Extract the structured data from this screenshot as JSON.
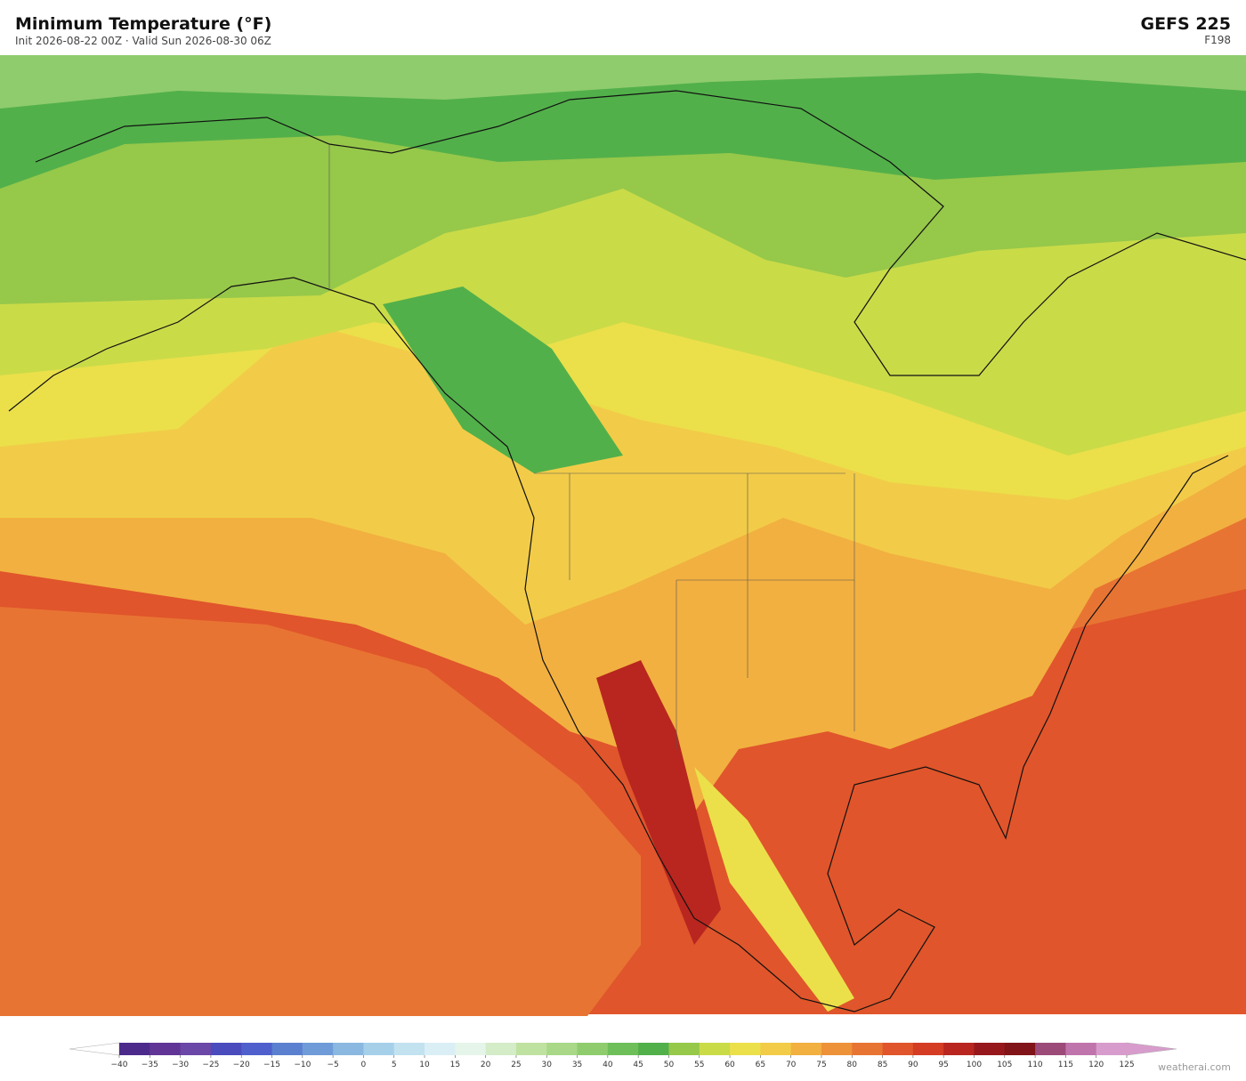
{
  "header": {
    "title": "Minimum Temperature  (°F)",
    "subtitle": "Init 2026-08-22 00Z  ·  Valid Sun 2026-08-30 06Z",
    "model": "GEFS  225",
    "forecast_hour": "F198"
  },
  "colorbar": {
    "ticks": [
      {
        "value": -40,
        "label": "−40"
      },
      {
        "value": -35,
        "label": "−35"
      },
      {
        "value": -30,
        "label": "−30"
      },
      {
        "value": -25,
        "label": "−25"
      },
      {
        "value": -20,
        "label": "−20"
      },
      {
        "value": -15,
        "label": "−15"
      },
      {
        "value": -10,
        "label": "−10"
      },
      {
        "value": -5,
        "label": "−5"
      },
      0,
      5,
      10,
      15,
      20,
      25,
      30,
      35,
      40,
      45,
      50,
      55,
      60,
      65,
      70,
      75,
      80,
      85,
      90,
      95,
      100,
      105,
      110,
      115,
      120,
      125
    ],
    "colors": [
      "#4b2a8c",
      "#613596",
      "#6b47a8",
      "#4a4cbe",
      "#4f5fcc",
      "#5b80cf",
      "#6f9cd8",
      "#8ab8e0",
      "#a6d0ea",
      "#c2e2f0",
      "#daeef5",
      "#e6f5ea",
      "#d4ecc8",
      "#c0e2a0",
      "#a8d888",
      "#8fcc6e",
      "#6ebf5a",
      "#52b04a",
      "#96c84a",
      "#cadb48",
      "#ebe04a",
      "#f2cc48",
      "#f2b040",
      "#ee923a",
      "#e87433",
      "#e0552b",
      "#d43c24",
      "#b8261f",
      "#96181c",
      "#801418",
      "#9c4a78",
      "#c074ac",
      "#d89ccc"
    ]
  },
  "watermark": "weatherai.com"
}
